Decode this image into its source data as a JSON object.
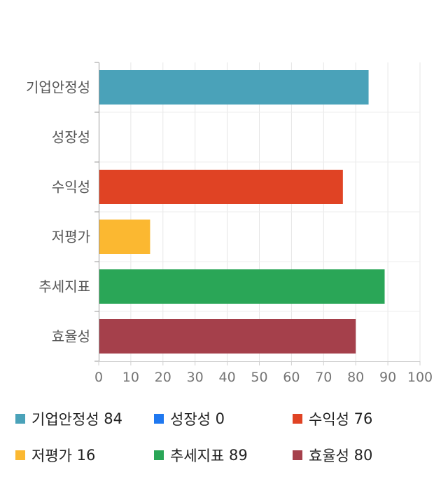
{
  "chart_data": {
    "type": "bar",
    "orientation": "horizontal",
    "categories": [
      "기업안정성",
      "성장성",
      "수익성",
      "저평가",
      "추세지표",
      "효율성"
    ],
    "values": [
      84,
      0,
      76,
      16,
      89,
      80
    ],
    "colors": [
      "#4aa2b9",
      "#1f78f0",
      "#e04324",
      "#fbb831",
      "#2aa657",
      "#a5404b"
    ],
    "xlim": [
      0,
      100
    ],
    "xticks": [
      0,
      10,
      20,
      30,
      40,
      50,
      60,
      70,
      80,
      90,
      100
    ],
    "grid": true,
    "legend_placement": "bottom",
    "legend": [
      {
        "name": "기업안정성",
        "value": "84",
        "color": "#4aa2b9"
      },
      {
        "name": "성장성",
        "value": "0",
        "color": "#1f78f0"
      },
      {
        "name": "수익성",
        "value": "76",
        "color": "#e04324"
      },
      {
        "name": "저평가",
        "value": "16",
        "color": "#fbb831"
      },
      {
        "name": "추세지표",
        "value": "89",
        "color": "#2aa657"
      },
      {
        "name": "효율성",
        "value": "80",
        "color": "#a5404b"
      }
    ]
  }
}
